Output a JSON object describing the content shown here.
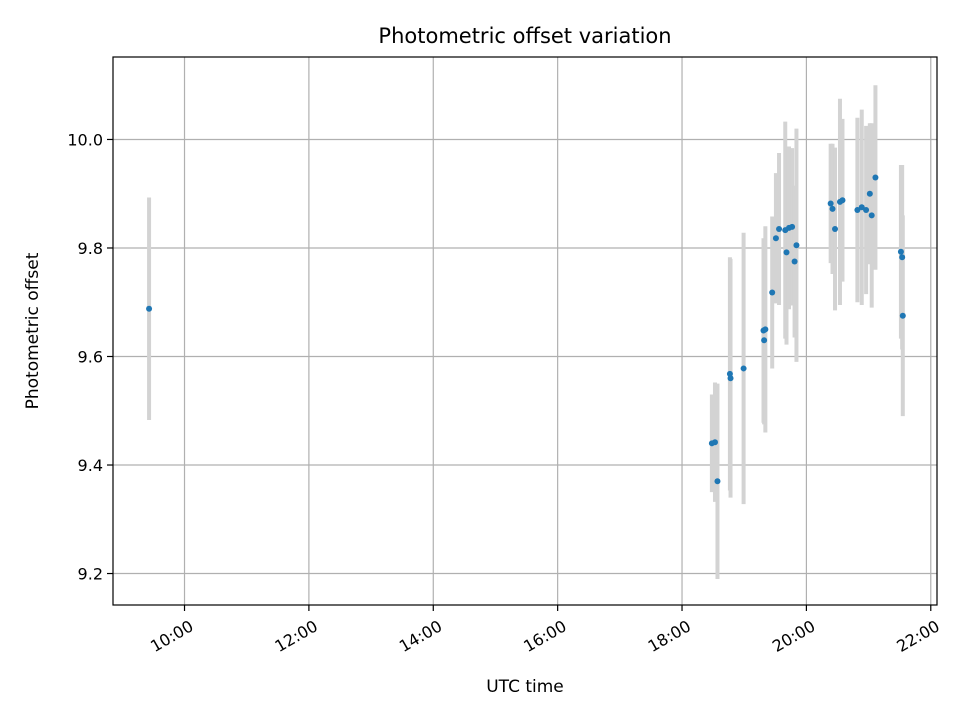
{
  "chart_data": {
    "type": "scatter",
    "title": "Photometric offset variation",
    "xlabel": "UTC time",
    "ylabel": "Photometric offset",
    "x_unit": "hours UTC",
    "xlim": [
      8.85,
      22.1
    ],
    "ylim": [
      9.142,
      10.152
    ],
    "x_ticks": [
      {
        "value": 10,
        "label": "10:00"
      },
      {
        "value": 12,
        "label": "12:00"
      },
      {
        "value": 14,
        "label": "14:00"
      },
      {
        "value": 16,
        "label": "16:00"
      },
      {
        "value": 18,
        "label": "18:00"
      },
      {
        "value": 20,
        "label": "20:00"
      },
      {
        "value": 22,
        "label": "22:00"
      }
    ],
    "y_ticks": [
      {
        "value": 9.2,
        "label": "9.2"
      },
      {
        "value": 9.4,
        "label": "9.4"
      },
      {
        "value": 9.6,
        "label": "9.6"
      },
      {
        "value": 9.8,
        "label": "9.8"
      },
      {
        "value": 10.0,
        "label": "10.0"
      }
    ],
    "grid": true,
    "colors": {
      "marker": "#1f77b4",
      "errorbar": "#d3d3d3",
      "grid": "#b0b0b0"
    },
    "points": [
      {
        "x": 9.43,
        "y": 9.688,
        "err": 0.205
      },
      {
        "x": 18.48,
        "y": 9.44,
        "err": 0.09
      },
      {
        "x": 18.53,
        "y": 9.442,
        "err": 0.11
      },
      {
        "x": 18.57,
        "y": 9.37,
        "err": 0.18
      },
      {
        "x": 18.77,
        "y": 9.568,
        "err": 0.215
      },
      {
        "x": 18.78,
        "y": 9.56,
        "err": 0.22
      },
      {
        "x": 18.99,
        "y": 9.578,
        "err": 0.25
      },
      {
        "x": 19.31,
        "y": 9.648,
        "err": 0.17
      },
      {
        "x": 19.32,
        "y": 9.63,
        "err": 0.155
      },
      {
        "x": 19.34,
        "y": 9.65,
        "err": 0.19
      },
      {
        "x": 19.45,
        "y": 9.718,
        "err": 0.14
      },
      {
        "x": 19.51,
        "y": 9.818,
        "err": 0.12
      },
      {
        "x": 19.56,
        "y": 9.835,
        "err": 0.14
      },
      {
        "x": 19.66,
        "y": 9.833,
        "err": 0.2
      },
      {
        "x": 19.68,
        "y": 9.792,
        "err": 0.17
      },
      {
        "x": 19.72,
        "y": 9.837,
        "err": 0.15
      },
      {
        "x": 19.77,
        "y": 9.839,
        "err": 0.145
      },
      {
        "x": 19.81,
        "y": 9.775,
        "err": 0.14
      },
      {
        "x": 19.84,
        "y": 9.805,
        "err": 0.215
      },
      {
        "x": 20.39,
        "y": 9.882,
        "err": 0.11
      },
      {
        "x": 20.42,
        "y": 9.872,
        "err": 0.12
      },
      {
        "x": 20.46,
        "y": 9.835,
        "err": 0.15
      },
      {
        "x": 20.54,
        "y": 9.885,
        "err": 0.19
      },
      {
        "x": 20.58,
        "y": 9.888,
        "err": 0.15
      },
      {
        "x": 20.82,
        "y": 9.87,
        "err": 0.17
      },
      {
        "x": 20.89,
        "y": 9.875,
        "err": 0.18
      },
      {
        "x": 20.96,
        "y": 9.87,
        "err": 0.155
      },
      {
        "x": 21.02,
        "y": 9.9,
        "err": 0.13
      },
      {
        "x": 21.05,
        "y": 9.86,
        "err": 0.17
      },
      {
        "x": 21.11,
        "y": 9.93,
        "err": 0.17
      },
      {
        "x": 21.52,
        "y": 9.793,
        "err": 0.16
      },
      {
        "x": 21.54,
        "y": 9.783,
        "err": 0.17
      },
      {
        "x": 21.55,
        "y": 9.675,
        "err": 0.185
      }
    ]
  }
}
